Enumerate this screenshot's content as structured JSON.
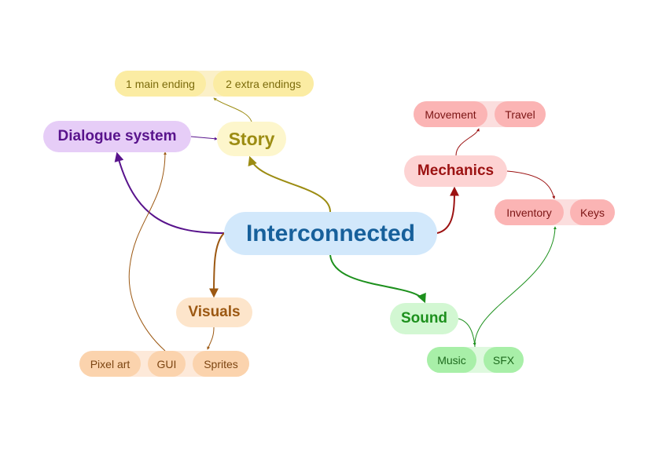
{
  "nodes": {
    "center": "Interconnected",
    "story": "Story",
    "ending_main": "1 main ending",
    "ending_extra": "2 extra endings",
    "dialogue": "Dialogue system",
    "mechanics": "Mechanics",
    "movement": "Movement",
    "travel": "Travel",
    "inventory": "Inventory",
    "keys": "Keys",
    "visuals": "Visuals",
    "pixel_art": "Pixel art",
    "gui": "GUI",
    "sprites": "Sprites",
    "sound": "Sound",
    "music": "Music",
    "sfx": "SFX"
  },
  "colors": {
    "center": "#17609b",
    "story": "#9c8c12",
    "dialogue": "#58138c",
    "mechanics": "#9c1212",
    "visuals": "#9c5812",
    "sound": "#1d901d"
  }
}
